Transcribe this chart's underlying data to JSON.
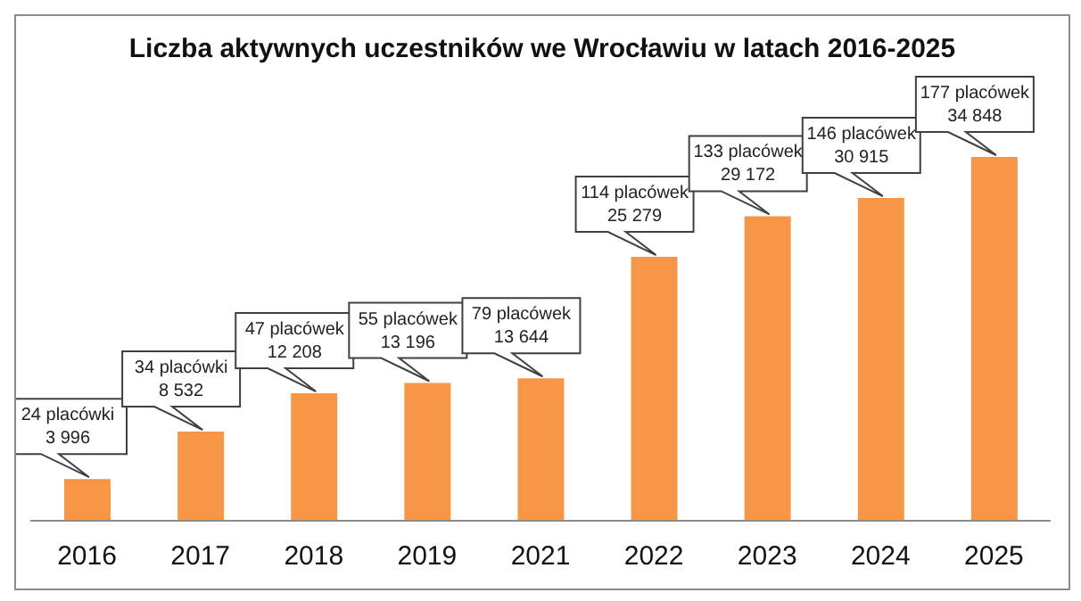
{
  "chart_data": {
    "type": "bar",
    "title": "Liczba aktywnych uczestników we Wrocławiu w latach 2016-2025",
    "categories": [
      "2016",
      "2017",
      "2018",
      "2019",
      "2021",
      "2022",
      "2023",
      "2024",
      "2025"
    ],
    "values": [
      3996,
      8532,
      12208,
      13196,
      13644,
      25279,
      29172,
      30915,
      34848
    ],
    "value_labels": [
      "24 placówki\n3 996",
      "34 placówki\n8 532",
      "47 placówek\n12 208",
      "55 placówek\n13 196",
      "79 placówek\n13 644",
      "114 placówek\n25 279",
      "133 placówek\n29 172",
      "146 placówek\n30 915",
      "177 placówek\n34 848"
    ],
    "color": "#f79646"
  }
}
